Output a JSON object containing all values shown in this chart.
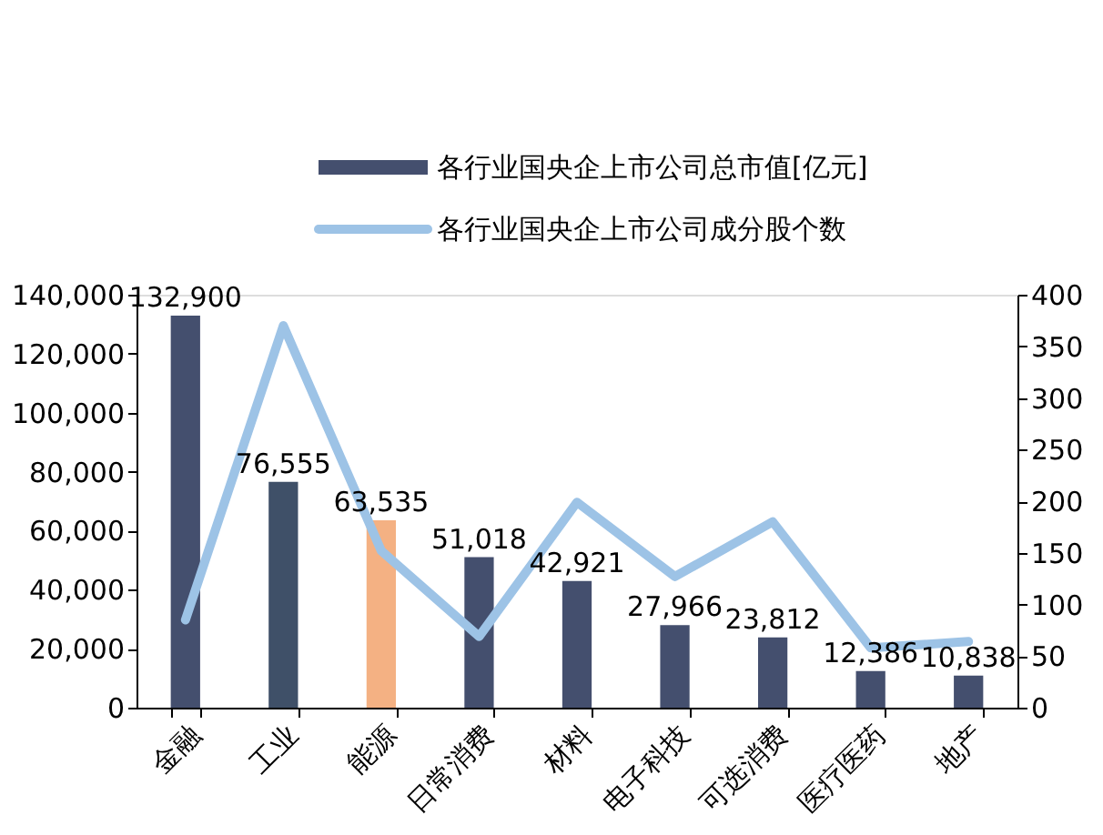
{
  "chart_data": {
    "type": "bar",
    "categories": [
      "金融",
      "工业",
      "能源",
      "日常消费",
      "材料",
      "电子科技",
      "可选消费",
      "医疗医药",
      "地产"
    ],
    "series": [
      {
        "name": "各行业国央企上市公司总市值[亿元]",
        "color": "#444f6e",
        "colors": [
          "#444f6e",
          "#3f5068",
          "#f4b183",
          "#444f6e",
          "#444f6e",
          "#444f6e",
          "#444f6e",
          "#444f6e",
          "#444f6e"
        ],
        "values": [
          132900,
          76555,
          63535,
          51018,
          42921,
          27966,
          23812,
          12386,
          10838
        ],
        "value_labels": [
          "132,900",
          "76,555",
          "63,535",
          "51,018",
          "42,921",
          "27,966",
          "23,812",
          "12,386",
          "10,838"
        ]
      },
      {
        "name": "各行业国央企上市公司成分股个数",
        "type": "line",
        "axis": "y2",
        "color": "#9dc3e6",
        "values": [
          85,
          370,
          152,
          69,
          199,
          127,
          180,
          58,
          64
        ]
      }
    ],
    "ylim": [
      0,
      140000
    ],
    "yticks": [
      {
        "value": 0,
        "label": "0"
      },
      {
        "value": 20000,
        "label": "20,000"
      },
      {
        "value": 40000,
        "label": "40,000"
      },
      {
        "value": 60000,
        "label": "60,000"
      },
      {
        "value": 80000,
        "label": "80,000"
      },
      {
        "value": 100000,
        "label": "100,000"
      },
      {
        "value": 120000,
        "label": "120,000"
      },
      {
        "value": 140000,
        "label": "140,000"
      }
    ],
    "y2lim": [
      0,
      400
    ],
    "y2ticks": [
      0,
      50,
      100,
      150,
      200,
      250,
      300,
      350,
      400
    ],
    "legend": "top",
    "grid": false
  }
}
